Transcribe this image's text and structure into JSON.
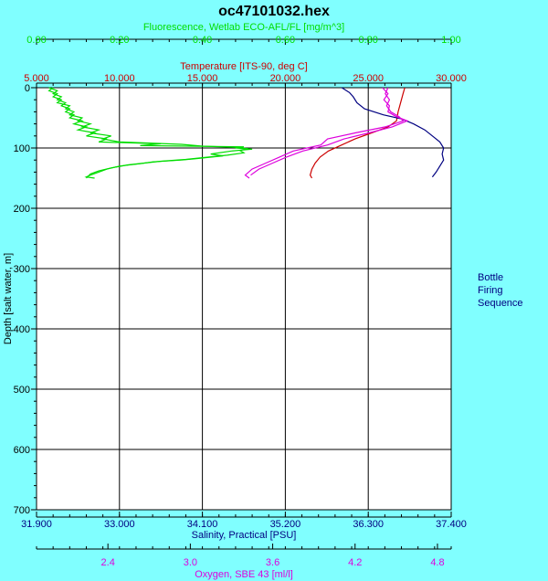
{
  "chart_data": {
    "type": "line",
    "title": "oc47101032.hex",
    "y_axis": {
      "label": "Depth [salt water, m]",
      "range": [
        0,
        700
      ],
      "ticks": [
        0,
        100,
        200,
        300,
        400,
        500,
        600,
        700
      ],
      "tick_labels": [
        "0",
        "100",
        "200",
        "300",
        "400",
        "500",
        "600",
        "700"
      ],
      "inverted": true
    },
    "x_axes": [
      {
        "id": "fluorescence",
        "label": "Fluorescence, Wetlab ECO-AFL/FL [mg/m^3]",
        "position": "top-outer",
        "color": "#00dd00",
        "range": [
          0.0,
          1.0
        ],
        "ticks": [
          0.0,
          0.2,
          0.4,
          0.6,
          0.8,
          1.0
        ],
        "tick_labels": [
          "0.00",
          "0.20",
          "0.40",
          "0.60",
          "0.80",
          "1.00"
        ]
      },
      {
        "id": "temperature",
        "label": "Temperature [ITS-90, deg C]",
        "position": "top-inner",
        "color": "#cc0000",
        "range": [
          5.0,
          30.0
        ],
        "ticks": [
          5,
          10,
          15,
          20,
          25,
          30
        ],
        "tick_labels": [
          "5.000",
          "10.000",
          "15.000",
          "20.000",
          "25.000",
          "30.000"
        ]
      },
      {
        "id": "salinity",
        "label": "Salinity, Practical [PSU]",
        "position": "bottom-inner",
        "color": "#000080",
        "range": [
          31.9,
          37.4
        ],
        "ticks": [
          31.9,
          33.0,
          34.1,
          35.2,
          36.3,
          37.4
        ],
        "tick_labels": [
          "31.900",
          "33.000",
          "34.100",
          "35.200",
          "36.300",
          "37.400"
        ]
      },
      {
        "id": "oxygen",
        "label": "Oxygen, SBE 43 [ml/l]",
        "position": "bottom-outer",
        "color": "#dd00dd",
        "range": [
          1.88,
          4.9
        ],
        "ticks": [
          2.4,
          3.0,
          3.6,
          4.2,
          4.8
        ],
        "tick_labels": [
          "2.4",
          "3.0",
          "3.6",
          "4.2",
          "4.8"
        ]
      }
    ],
    "grid": true,
    "legend_text": [
      "Bottle",
      "Firing",
      "Sequence"
    ],
    "series": [
      {
        "axis": "fluorescence",
        "color": "#00dd00",
        "points": [
          [
            0.03,
            0
          ],
          [
            0.05,
            5
          ],
          [
            0.04,
            10
          ],
          [
            0.06,
            15
          ],
          [
            0.05,
            20
          ],
          [
            0.07,
            25
          ],
          [
            0.06,
            30
          ],
          [
            0.08,
            35
          ],
          [
            0.07,
            40
          ],
          [
            0.09,
            45
          ],
          [
            0.08,
            50
          ],
          [
            0.11,
            55
          ],
          [
            0.09,
            60
          ],
          [
            0.12,
            65
          ],
          [
            0.1,
            70
          ],
          [
            0.14,
            75
          ],
          [
            0.12,
            80
          ],
          [
            0.17,
            85
          ],
          [
            0.15,
            90
          ],
          [
            0.3,
            93
          ],
          [
            0.25,
            96
          ],
          [
            0.5,
            98
          ],
          [
            0.48,
            100
          ],
          [
            0.52,
            102
          ],
          [
            0.47,
            105
          ],
          [
            0.42,
            110
          ],
          [
            0.45,
            113
          ],
          [
            0.38,
            118
          ],
          [
            0.35,
            120
          ],
          [
            0.28,
            123
          ],
          [
            0.25,
            126
          ],
          [
            0.2,
            130
          ],
          [
            0.17,
            135
          ],
          [
            0.15,
            140
          ],
          [
            0.13,
            145
          ],
          [
            0.12,
            148
          ],
          [
            0.14,
            150
          ]
        ]
      },
      {
        "axis": "fluorescence",
        "color": "#00dd00",
        "points": [
          [
            0.04,
            0
          ],
          [
            0.03,
            5
          ],
          [
            0.05,
            10
          ],
          [
            0.04,
            15
          ],
          [
            0.06,
            20
          ],
          [
            0.05,
            25
          ],
          [
            0.08,
            30
          ],
          [
            0.07,
            35
          ],
          [
            0.09,
            40
          ],
          [
            0.08,
            45
          ],
          [
            0.11,
            50
          ],
          [
            0.1,
            55
          ],
          [
            0.13,
            60
          ],
          [
            0.11,
            65
          ],
          [
            0.15,
            70
          ],
          [
            0.13,
            75
          ],
          [
            0.18,
            80
          ],
          [
            0.16,
            85
          ],
          [
            0.2,
            90
          ],
          [
            0.35,
            94
          ],
          [
            0.4,
            97
          ],
          [
            0.48,
            99
          ],
          [
            0.51,
            101
          ],
          [
            0.49,
            104
          ],
          [
            0.5,
            108
          ],
          [
            0.46,
            112
          ],
          [
            0.4,
            116
          ],
          [
            0.36,
            119
          ],
          [
            0.3,
            122
          ],
          [
            0.26,
            125
          ],
          [
            0.22,
            128
          ],
          [
            0.18,
            133
          ],
          [
            0.15,
            138
          ],
          [
            0.13,
            143
          ],
          [
            0.12,
            150
          ]
        ]
      },
      {
        "axis": "temperature",
        "color": "#cc0000",
        "points": [
          [
            27.2,
            0
          ],
          [
            27.1,
            10
          ],
          [
            27.0,
            20
          ],
          [
            26.9,
            30
          ],
          [
            26.8,
            40
          ],
          [
            26.7,
            55
          ],
          [
            26.2,
            65
          ],
          [
            25.2,
            75
          ],
          [
            24.2,
            85
          ],
          [
            23.4,
            95
          ],
          [
            22.6,
            105
          ],
          [
            22.1,
            115
          ],
          [
            21.8,
            125
          ],
          [
            21.6,
            135
          ],
          [
            21.5,
            145
          ],
          [
            21.6,
            150
          ]
        ]
      },
      {
        "axis": "salinity",
        "color": "#000080",
        "points": [
          [
            35.95,
            0
          ],
          [
            36.05,
            8
          ],
          [
            36.1,
            15
          ],
          [
            36.15,
            25
          ],
          [
            36.25,
            35
          ],
          [
            36.5,
            45
          ],
          [
            36.75,
            52
          ],
          [
            36.9,
            60
          ],
          [
            37.05,
            70
          ],
          [
            37.15,
            80
          ],
          [
            37.25,
            90
          ],
          [
            37.3,
            100
          ],
          [
            37.28,
            110
          ],
          [
            37.3,
            120
          ],
          [
            37.25,
            130
          ],
          [
            37.2,
            140
          ],
          [
            37.15,
            148
          ]
        ]
      },
      {
        "axis": "oxygen",
        "color": "#dd00dd",
        "points": [
          [
            4.44,
            0
          ],
          [
            4.42,
            10
          ],
          [
            4.45,
            20
          ],
          [
            4.43,
            30
          ],
          [
            4.46,
            40
          ],
          [
            4.52,
            48
          ],
          [
            4.55,
            55
          ],
          [
            4.42,
            65
          ],
          [
            4.2,
            75
          ],
          [
            4.0,
            85
          ],
          [
            3.95,
            95
          ],
          [
            3.75,
            105
          ],
          [
            3.65,
            115
          ],
          [
            3.55,
            125
          ],
          [
            3.45,
            135
          ],
          [
            3.4,
            145
          ],
          [
            3.43,
            150
          ]
        ]
      },
      {
        "axis": "oxygen",
        "color": "#dd00dd",
        "points": [
          [
            4.4,
            0
          ],
          [
            4.44,
            10
          ],
          [
            4.41,
            20
          ],
          [
            4.45,
            30
          ],
          [
            4.44,
            40
          ],
          [
            4.5,
            48
          ],
          [
            4.58,
            55
          ],
          [
            4.47,
            65
          ],
          [
            4.3,
            75
          ],
          [
            4.12,
            85
          ],
          [
            4.0,
            95
          ],
          [
            3.82,
            105
          ],
          [
            3.7,
            115
          ],
          [
            3.6,
            125
          ],
          [
            3.5,
            135
          ],
          [
            3.44,
            145
          ]
        ]
      }
    ]
  }
}
